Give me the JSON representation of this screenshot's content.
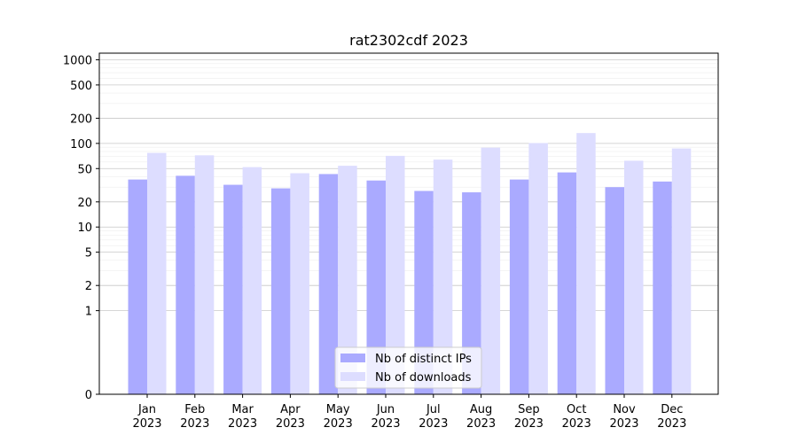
{
  "chart_data": {
    "type": "bar",
    "title": "rat2302cdf 2023",
    "xlabel": "",
    "ylabel": "",
    "yscale": "symlog",
    "ylim": [
      0,
      1200
    ],
    "yticks": [
      0,
      1,
      2,
      5,
      10,
      20,
      50,
      100,
      200,
      500,
      1000
    ],
    "grid": true,
    "legend_position": "bottom-center",
    "categories": [
      "Jan\n2023",
      "Feb\n2023",
      "Mar\n2023",
      "Apr\n2023",
      "May\n2023",
      "Jun\n2023",
      "Jul\n2023",
      "Aug\n2023",
      "Sep\n2023",
      "Oct\n2023",
      "Nov\n2023",
      "Dec\n2023"
    ],
    "series": [
      {
        "name": "Nb of distinct IPs",
        "color": "#aaaaff",
        "values": [
          37,
          41,
          32,
          29,
          43,
          36,
          27,
          26,
          37,
          45,
          30,
          35
        ]
      },
      {
        "name": "Nb of downloads",
        "color": "#ddddff",
        "values": [
          77,
          72,
          52,
          44,
          54,
          71,
          64,
          89,
          101,
          133,
          62,
          87
        ]
      }
    ]
  }
}
